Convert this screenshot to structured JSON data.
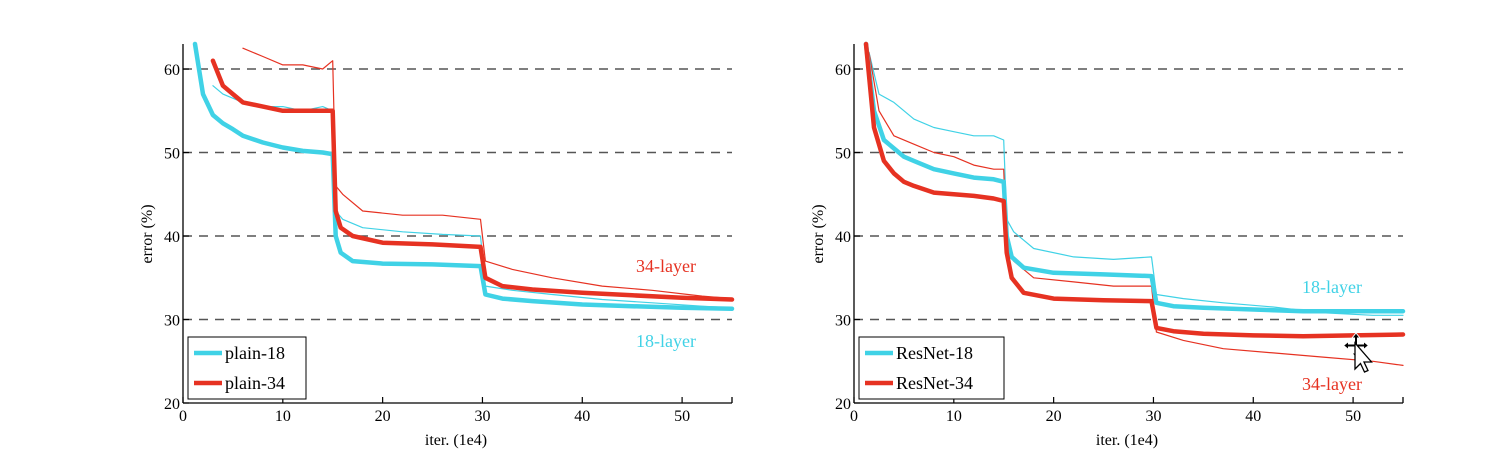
{
  "chart_data": [
    {
      "type": "line",
      "panel": "plain",
      "xlabel": "iter. (1e4)",
      "ylabel": "error (%)",
      "xlim": [
        0,
        55
      ],
      "ylim": [
        20,
        63
      ],
      "xticks": [
        0,
        10,
        20,
        30,
        40,
        50
      ],
      "yticks": [
        20,
        30,
        40,
        50,
        60
      ],
      "grid_y": [
        30,
        40,
        50,
        60
      ],
      "legend": {
        "placement": "bottom-left",
        "entries": [
          "plain-18",
          "plain-34"
        ]
      },
      "annotations": [
        {
          "text": "34-layer",
          "color": "red"
        },
        {
          "text": "18-layer",
          "color": "cyan"
        }
      ],
      "series": [
        {
          "name": "plain-18",
          "kind": "val",
          "color": "cyan",
          "x": [
            1.2,
            2,
            3,
            4,
            5,
            6,
            8,
            10,
            12,
            14,
            15,
            15.3,
            15.8,
            17,
            20,
            25,
            29.8,
            30.3,
            32,
            35,
            40,
            45,
            50,
            55
          ],
          "y": [
            63,
            57,
            54.5,
            53.5,
            52.8,
            52,
            51.2,
            50.6,
            50.2,
            50,
            49.8,
            40,
            38,
            37,
            36.7,
            36.6,
            36.4,
            33,
            32.5,
            32.2,
            31.8,
            31.6,
            31.4,
            31.3
          ]
        },
        {
          "name": "plain-34",
          "kind": "val",
          "color": "red",
          "x": [
            3,
            4,
            5,
            6,
            8,
            10,
            12,
            14,
            15,
            15.3,
            15.8,
            17,
            20,
            25,
            29.8,
            30.3,
            32,
            35,
            40,
            45,
            50,
            55
          ],
          "y": [
            61,
            58,
            57,
            56,
            55.5,
            55,
            55,
            55,
            55,
            43,
            41,
            40,
            39.2,
            39,
            38.7,
            35,
            34,
            33.6,
            33.2,
            32.9,
            32.6,
            32.4
          ]
        },
        {
          "name": "plain-18",
          "kind": "train",
          "color": "cyan",
          "x": [
            3,
            4,
            6,
            8,
            10,
            12,
            14,
            15,
            15.3,
            16,
            18,
            22,
            26,
            29.8,
            30.3,
            33,
            37,
            42,
            47,
            52,
            55
          ],
          "y": [
            58,
            57,
            56,
            55.5,
            55.5,
            55,
            55.5,
            55,
            43,
            42,
            41,
            40.5,
            40.2,
            40,
            34,
            33.5,
            33,
            32.4,
            32,
            31.6,
            31.4
          ]
        },
        {
          "name": "plain-34",
          "kind": "train",
          "color": "red",
          "x": [
            6,
            8,
            10,
            12,
            14,
            15,
            15.3,
            16,
            18,
            22,
            26,
            29.8,
            30.3,
            33,
            37,
            42,
            47,
            52,
            55
          ],
          "y": [
            62.5,
            61.5,
            60.5,
            60.5,
            60,
            61,
            46,
            45,
            43,
            42.5,
            42.5,
            42,
            37,
            36,
            35,
            34,
            33.5,
            32.8,
            32.5
          ]
        }
      ]
    },
    {
      "type": "line",
      "panel": "resnet",
      "xlabel": "iter. (1e4)",
      "ylabel": "error (%)",
      "xlim": [
        0,
        55
      ],
      "ylim": [
        20,
        63
      ],
      "xticks": [
        0,
        10,
        20,
        30,
        40,
        50
      ],
      "yticks": [
        20,
        30,
        40,
        50,
        60
      ],
      "grid_y": [
        30,
        40,
        50,
        60
      ],
      "legend": {
        "placement": "bottom-left",
        "entries": [
          "ResNet-18",
          "ResNet-34"
        ]
      },
      "annotations": [
        {
          "text": "18-layer",
          "color": "cyan"
        },
        {
          "text": "34-layer",
          "color": "red"
        }
      ],
      "series": [
        {
          "name": "ResNet-18",
          "kind": "val",
          "color": "cyan",
          "x": [
            1.2,
            2,
            3,
            4,
            5,
            6,
            8,
            10,
            12,
            14,
            15,
            15.3,
            15.8,
            17,
            20,
            25,
            29.8,
            30.3,
            32,
            35,
            40,
            45,
            50,
            55
          ],
          "y": [
            63,
            55,
            51.5,
            50.5,
            49.5,
            49,
            48,
            47.5,
            47,
            46.8,
            46.5,
            40,
            37.5,
            36.2,
            35.6,
            35.4,
            35.2,
            32,
            31.6,
            31.4,
            31.2,
            31,
            31,
            31
          ]
        },
        {
          "name": "ResNet-34",
          "kind": "val",
          "color": "red",
          "x": [
            1.2,
            2,
            3,
            4,
            5,
            6,
            8,
            10,
            12,
            14,
            15,
            15.3,
            15.8,
            17,
            20,
            25,
            29.8,
            30.3,
            32,
            35,
            40,
            45,
            50,
            55
          ],
          "y": [
            63,
            53,
            49,
            47.5,
            46.5,
            46,
            45.2,
            45,
            44.8,
            44.5,
            44.2,
            38,
            35,
            33.2,
            32.5,
            32.3,
            32.2,
            29,
            28.6,
            28.3,
            28.1,
            28,
            28.1,
            28.2
          ]
        },
        {
          "name": "ResNet-18",
          "kind": "train",
          "color": "cyan",
          "x": [
            1.5,
            2.5,
            4,
            6,
            8,
            10,
            12,
            14,
            15,
            15.3,
            16,
            18,
            22,
            26,
            29.8,
            30.3,
            33,
            37,
            42,
            47,
            52,
            55
          ],
          "y": [
            62,
            57,
            56,
            54,
            53,
            52.5,
            52,
            52,
            51.5,
            42,
            40.5,
            38.5,
            37.5,
            37.2,
            37.5,
            33,
            32.5,
            32,
            31.5,
            30.8,
            30.5,
            30.5
          ]
        },
        {
          "name": "ResNet-34",
          "kind": "train",
          "color": "red",
          "x": [
            1.5,
            2.5,
            4,
            6,
            8,
            10,
            12,
            14,
            15,
            15.3,
            16,
            18,
            22,
            26,
            29.8,
            30.3,
            33,
            37,
            42,
            47,
            52,
            55
          ],
          "y": [
            62,
            55,
            52,
            51,
            50,
            49.5,
            48.5,
            48,
            48,
            39,
            37,
            35,
            34.5,
            34,
            34,
            28.5,
            27.5,
            26.5,
            26,
            25.5,
            25,
            24.5
          ]
        }
      ]
    }
  ],
  "colors": {
    "cyan": "#40d2e6",
    "red": "#e63222",
    "grid": "#555555",
    "axis": "#000000"
  }
}
